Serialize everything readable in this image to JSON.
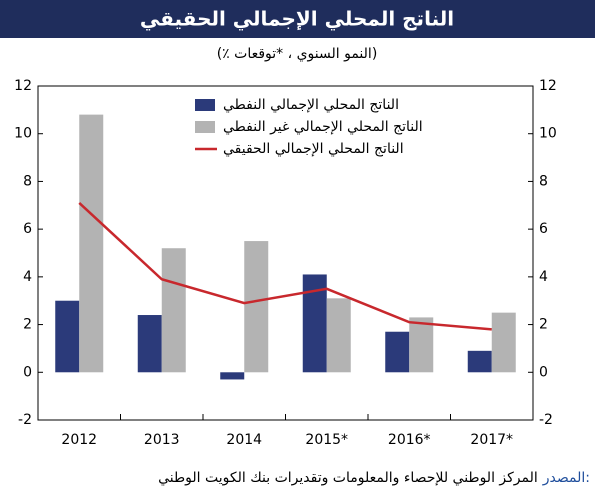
{
  "chart_data": {
    "type": "bar_line",
    "title": "الناتج المحلي الإجمالي الحقيقي",
    "subtitle": "(٪ النمو السنوي ، *توقعات)",
    "categories": [
      "2012",
      "2013",
      "2014",
      "2015*",
      "2016*",
      "2017*"
    ],
    "series": [
      {
        "name": "الناتج المحلي الإجمالي النفطي",
        "type": "bar",
        "color": "#2b3a7a",
        "values": [
          3.0,
          2.4,
          -0.3,
          4.1,
          1.7,
          0.9
        ]
      },
      {
        "name": "الناتج المحلي الإجمالي غير النفطي",
        "type": "bar",
        "color": "#b3b3b3",
        "values": [
          10.8,
          5.2,
          5.5,
          3.1,
          2.3,
          2.5
        ]
      },
      {
        "name": "الناتج المحلي الإجمالي الحقيقي",
        "type": "line",
        "color": "#c8282d",
        "values": [
          7.1,
          3.9,
          2.9,
          3.5,
          2.1,
          1.8
        ]
      }
    ],
    "ylim": [
      -2,
      12
    ],
    "yticks": [
      -2,
      0,
      2,
      4,
      6,
      8,
      10,
      12
    ],
    "y2lim": [
      -2,
      12
    ],
    "y2ticks": [
      -2,
      0,
      2,
      4,
      6,
      8,
      10,
      12
    ],
    "grid": false,
    "legend": "top-center",
    "source_label": "المصدر:",
    "source": "المركز الوطني للإحصاء والمعلومات وتقديرات بنك الكويت الوطني"
  }
}
